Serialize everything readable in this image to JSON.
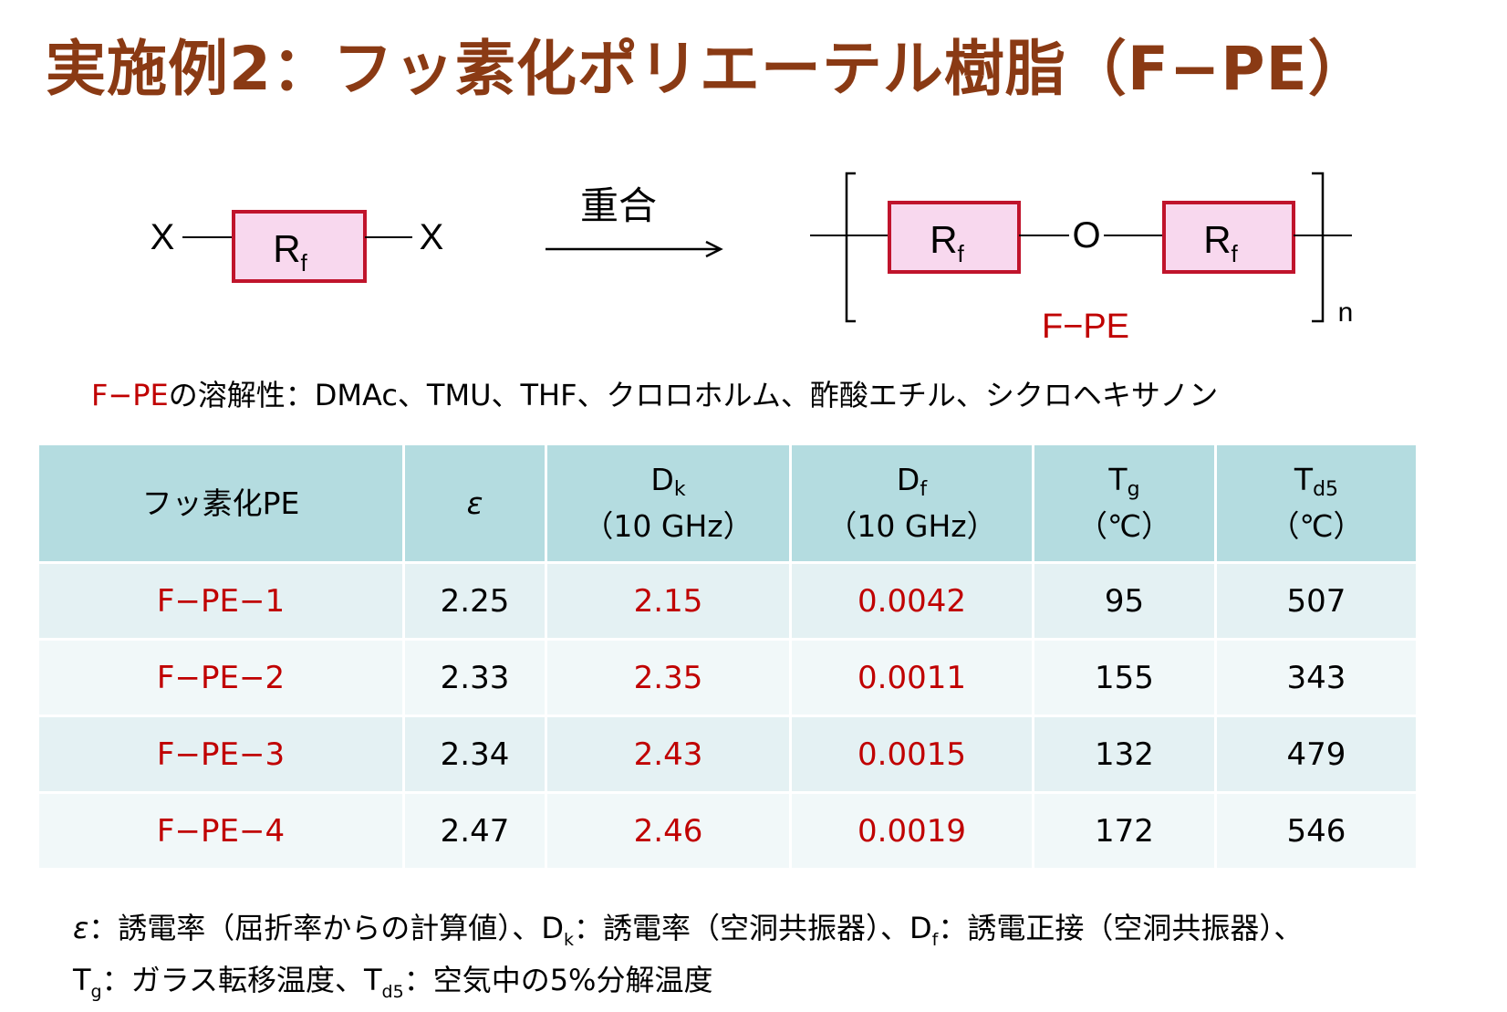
{
  "title": "実施例2：フッ素化ポリエーテル樹脂（F−PE）",
  "scheme": {
    "x_left": "X",
    "x_right": "X",
    "rf": "R",
    "rf_sub": "f",
    "arrow_label": "重合",
    "oxygen": "O",
    "repeat_n": "n",
    "product_label": "F−PE",
    "colors": {
      "box_border": "#c0142c",
      "box_fill": "#f8d8ee",
      "label": "#c00000"
    }
  },
  "solubility": {
    "prefix": "F−PE",
    "text": "の溶解性：DMAc、TMU、THF、クロロホルム、酢酸エチル、シクロヘキサノン"
  },
  "table": {
    "headers": {
      "name": "フッ素化PE",
      "eps": "ε",
      "dk_main": "D",
      "dk_sub": "k",
      "dk_unit": "（10 GHz）",
      "df_main": "D",
      "df_sub": "f",
      "df_unit": "（10 GHz）",
      "tg_main": "T",
      "tg_sub": "g",
      "tg_unit": "（℃）",
      "td_main": "T",
      "td_sub": "d5",
      "td_unit": "（℃）"
    },
    "rows": [
      {
        "name": "F−PE−1",
        "eps": "2.25",
        "dk": "2.15",
        "df": "0.0042",
        "tg": "95",
        "td": "507"
      },
      {
        "name": "F−PE−2",
        "eps": "2.33",
        "dk": "2.35",
        "df": "0.0011",
        "tg": "155",
        "td": "343"
      },
      {
        "name": "F−PE−3",
        "eps": "2.34",
        "dk": "2.43",
        "df": "0.0015",
        "tg": "132",
        "td": "479"
      },
      {
        "name": "F−PE−4",
        "eps": "2.47",
        "dk": "2.46",
        "df": "0.0019",
        "tg": "172",
        "td": "546"
      }
    ]
  },
  "notes": {
    "eps": "ε",
    "eps_def": "：誘電率（屈折率からの計算値）、",
    "dk_main": "D",
    "dk_sub": "k",
    "dk_def": "：誘電率（空洞共振器）、",
    "df_main": "D",
    "df_sub": "f",
    "df_def": "：誘電正接（空洞共振器）、",
    "tg_main": "T",
    "tg_sub": "g",
    "tg_def": "：ガラス転移温度、",
    "td_main": "T",
    "td_sub": "d5",
    "td_def": "：空気中の5%分解温度"
  }
}
